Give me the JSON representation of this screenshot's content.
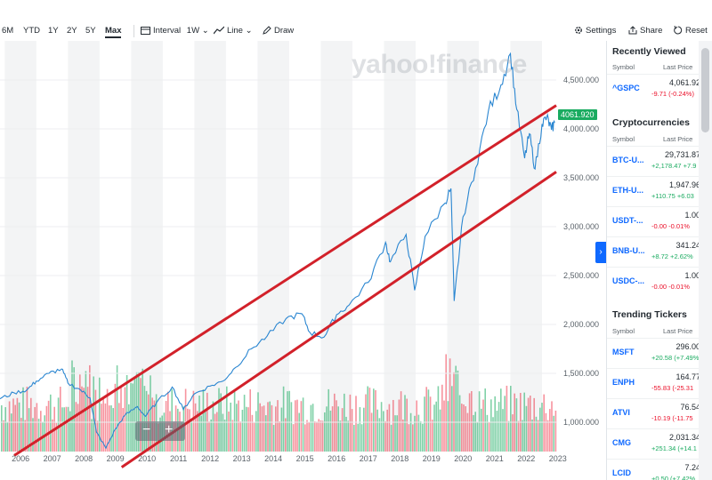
{
  "toolbar": {
    "ranges": [
      "6M",
      "YTD",
      "1Y",
      "2Y",
      "5Y",
      "Max"
    ],
    "active_range": "Max",
    "interval_label": "Interval",
    "interval_value": "1W",
    "chart_type": "Line",
    "draw_label": "Draw",
    "settings_label": "Settings",
    "share_label": "Share",
    "reset_label": "Reset"
  },
  "chart": {
    "watermark": "yahoo!finance",
    "current_price_tag": "4061.920"
  },
  "chart_data": {
    "type": "line",
    "x_ticks": [
      "2006",
      "2007",
      "2008",
      "2009",
      "2010",
      "2011",
      "2012",
      "2013",
      "2014",
      "2015",
      "2016",
      "2017",
      "2018",
      "2019",
      "2020",
      "2021",
      "2022",
      "2023"
    ],
    "y_ticks": [
      "4,500.000",
      "4,000.000",
      "3,500.000",
      "3,000.000",
      "2,500.000",
      "2,000.000",
      "1,500.000",
      "1,000.000"
    ],
    "ylim": [
      700,
      4900
    ],
    "xlim": [
      2005.85,
      2023.45
    ],
    "series": [
      {
        "points": [
          [
            2005.85,
            1240
          ],
          [
            2006.3,
            1300
          ],
          [
            2006.7,
            1330
          ],
          [
            2007.0,
            1420
          ],
          [
            2007.4,
            1500
          ],
          [
            2007.8,
            1545
          ],
          [
            2008.0,
            1400
          ],
          [
            2008.4,
            1330
          ],
          [
            2008.7,
            1250
          ],
          [
            2008.9,
            900
          ],
          [
            2009.2,
            735
          ],
          [
            2009.5,
            930
          ],
          [
            2009.8,
            1070
          ],
          [
            2010.2,
            1160
          ],
          [
            2010.45,
            1060
          ],
          [
            2010.8,
            1200
          ],
          [
            2011.3,
            1360
          ],
          [
            2011.65,
            1130
          ],
          [
            2012.0,
            1290
          ],
          [
            2012.5,
            1370
          ],
          [
            2012.9,
            1420
          ],
          [
            2013.3,
            1560
          ],
          [
            2013.8,
            1750
          ],
          [
            2014.3,
            1880
          ],
          [
            2014.9,
            2060
          ],
          [
            2015.4,
            2110
          ],
          [
            2015.65,
            1920
          ],
          [
            2016.1,
            1870
          ],
          [
            2016.5,
            2100
          ],
          [
            2016.9,
            2200
          ],
          [
            2017.5,
            2430
          ],
          [
            2018.05,
            2840
          ],
          [
            2018.2,
            2640
          ],
          [
            2018.7,
            2920
          ],
          [
            2018.97,
            2350
          ],
          [
            2019.3,
            2900
          ],
          [
            2019.9,
            3230
          ],
          [
            2020.12,
            3390
          ],
          [
            2020.22,
            2240
          ],
          [
            2020.5,
            3100
          ],
          [
            2020.9,
            3600
          ],
          [
            2021.3,
            4180
          ],
          [
            2021.7,
            4450
          ],
          [
            2022.0,
            4770
          ],
          [
            2022.2,
            4200
          ],
          [
            2022.45,
            3700
          ],
          [
            2022.6,
            3950
          ],
          [
            2022.78,
            3590
          ],
          [
            2023.0,
            4050
          ],
          [
            2023.15,
            4120
          ],
          [
            2023.3,
            3990
          ],
          [
            2023.4,
            4062
          ]
        ]
      }
    ],
    "trendlines": [
      {
        "points": [
          [
            2006.3,
            660
          ],
          [
            2023.45,
            4240
          ]
        ]
      },
      {
        "points": [
          [
            2009.7,
            540
          ],
          [
            2023.45,
            3560
          ]
        ]
      }
    ]
  },
  "sidebar": {
    "recently_viewed": {
      "title": "Recently Viewed",
      "col_symbol": "Symbol",
      "col_price": "Last Price",
      "items": [
        {
          "symbol": "^GSPC",
          "price": "4,061.92",
          "change": "-9.71 (-0.24%)",
          "dir": "neg"
        }
      ]
    },
    "crypto": {
      "title": "Cryptocurrencies",
      "col_symbol": "Symbol",
      "col_price": "Last Price",
      "items": [
        {
          "symbol": "BTC-U...",
          "price": "29,731.87",
          "change": "+2,178.47 +7.9",
          "dir": "pos"
        },
        {
          "symbol": "ETH-U...",
          "price": "1,947.96",
          "change": "+110.75 +6.03",
          "dir": "pos"
        },
        {
          "symbol": "USDT-...",
          "price": "1.00",
          "change": "-0.00 -0.01%",
          "dir": "neg"
        },
        {
          "symbol": "BNB-U...",
          "price": "341.24",
          "change": "+8.72 +2.62%",
          "dir": "pos"
        },
        {
          "symbol": "USDC-...",
          "price": "1.00",
          "change": "-0.00 -0.01%",
          "dir": "neg"
        }
      ]
    },
    "trending": {
      "title": "Trending Tickers",
      "col_symbol": "Symbol",
      "col_price": "Last Price",
      "items": [
        {
          "symbol": "MSFT",
          "price": "296.00",
          "change": "+20.58 (+7.49%",
          "dir": "pos"
        },
        {
          "symbol": "ENPH",
          "price": "164.77",
          "change": "-55.83 (-25.31",
          "dir": "neg"
        },
        {
          "symbol": "ATVI",
          "price": "76.54",
          "change": "-10.19 (-11.75",
          "dir": "neg"
        },
        {
          "symbol": "CMG",
          "price": "2,031.34",
          "change": "+251.34 (+14.1",
          "dir": "pos"
        },
        {
          "symbol": "LCID",
          "price": "7.24",
          "change": "+0.50 (+7.42%",
          "dir": "pos"
        }
      ]
    }
  }
}
